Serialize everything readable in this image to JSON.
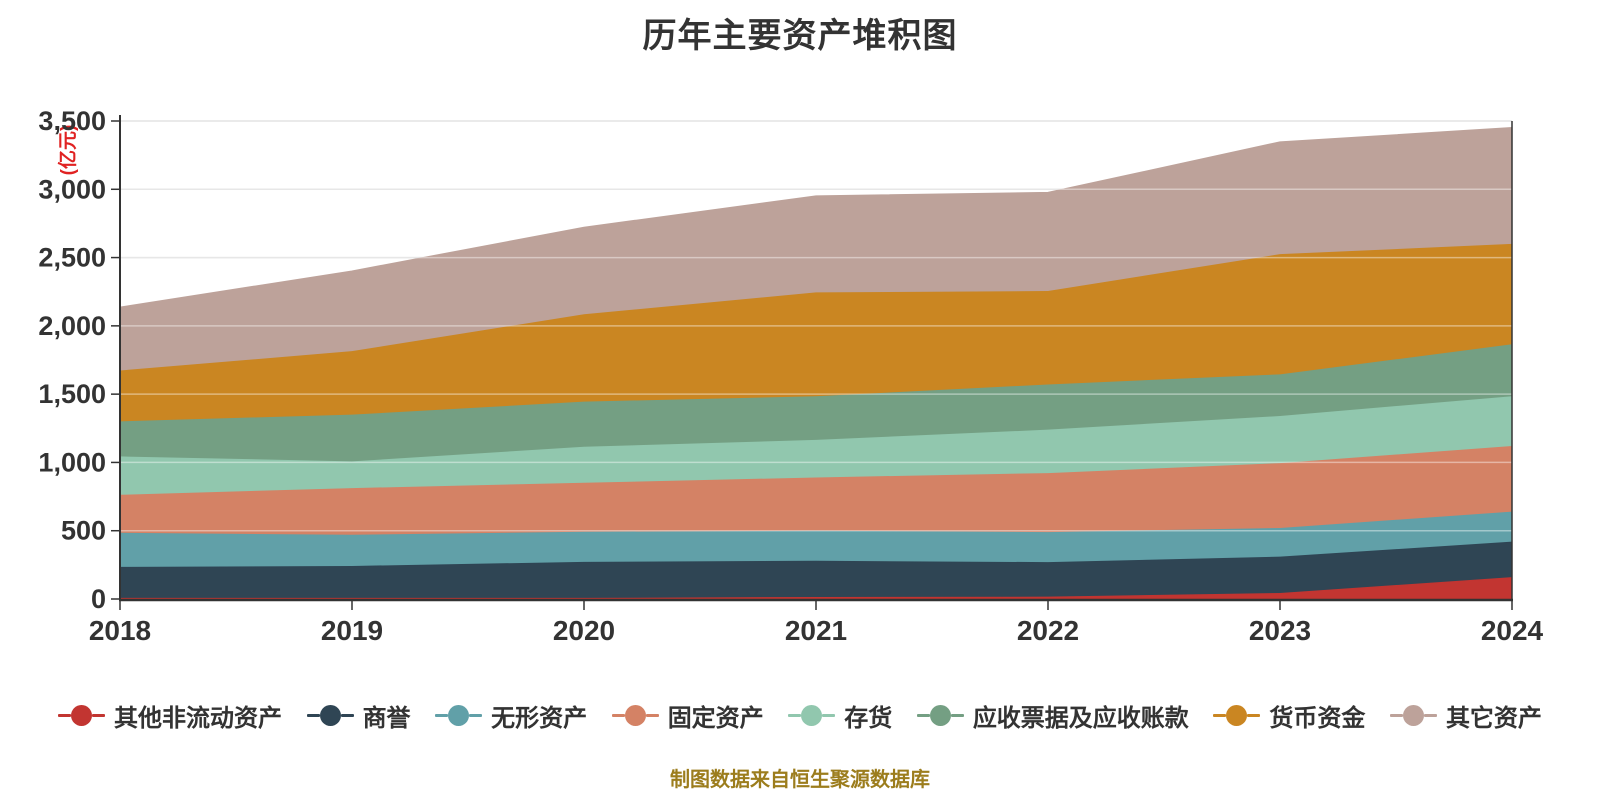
{
  "title": "历年主要资产堆积图",
  "y_axis": {
    "unit_label": "(亿元)",
    "tick_labels": [
      "0",
      "500",
      "1,000",
      "1,500",
      "2,000",
      "2,500",
      "3,000",
      "3,500"
    ],
    "tick_values": [
      0,
      500,
      1000,
      1500,
      2000,
      2500,
      3000,
      3500
    ]
  },
  "x_axis": {
    "tick_labels": [
      "2018",
      "2019",
      "2020",
      "2021",
      "2022",
      "2023",
      "2024"
    ]
  },
  "chart_data": {
    "type": "area",
    "stacked": true,
    "title": "历年主要资产堆积图",
    "ylabel": "(亿元)",
    "ylim": [
      0,
      3500
    ],
    "grid": true,
    "legend_position": "bottom",
    "categories": [
      "2018",
      "2019",
      "2020",
      "2021",
      "2022",
      "2023",
      "2024"
    ],
    "series": [
      {
        "id": "other-noncurrent-assets",
        "name": "其他非流动资产",
        "color": "#c23531",
        "values": [
          8,
          8,
          8,
          15,
          17,
          44,
          160
        ]
      },
      {
        "id": "goodwill",
        "name": "商誉",
        "color": "#2f4554",
        "values": [
          227,
          234,
          264,
          265,
          253,
          266,
          260
        ]
      },
      {
        "id": "intangible-assets",
        "name": "无形资产",
        "color": "#61a0a8",
        "values": [
          250,
          228,
          220,
          220,
          220,
          210,
          220
        ]
      },
      {
        "id": "fixed-assets",
        "name": "固定资产",
        "color": "#d48265",
        "values": [
          278,
          342,
          359,
          390,
          432,
          475,
          480
        ]
      },
      {
        "id": "inventory",
        "name": "存货",
        "color": "#91c7ae",
        "values": [
          281,
          196,
          264,
          275,
          318,
          345,
          365
        ]
      },
      {
        "id": "notes-accounts-receivable",
        "name": "应收票据及应收账款",
        "color": "#749f83",
        "values": [
          257,
          342,
          330,
          320,
          331,
          305,
          380
        ]
      },
      {
        "id": "monetary-funds",
        "name": "货币资金",
        "color": "#ca8622",
        "values": [
          372,
          465,
          640,
          760,
          684,
          880,
          735
        ]
      },
      {
        "id": "other-assets",
        "name": "其它资产",
        "color": "#bda29a",
        "values": [
          462,
          585,
          635,
          705,
          720,
          820,
          850
        ]
      }
    ]
  },
  "footer": {
    "source_note": "制图数据来自恒生聚源数据库"
  },
  "colors": {
    "title_text": "#333333",
    "axis_label_text": "#333333",
    "axis_line": "#333333",
    "gridline": "#d6d6d6",
    "unit_label_text": "#e02222",
    "footer_text": "#9c7d1d",
    "background": "#ffffff"
  }
}
